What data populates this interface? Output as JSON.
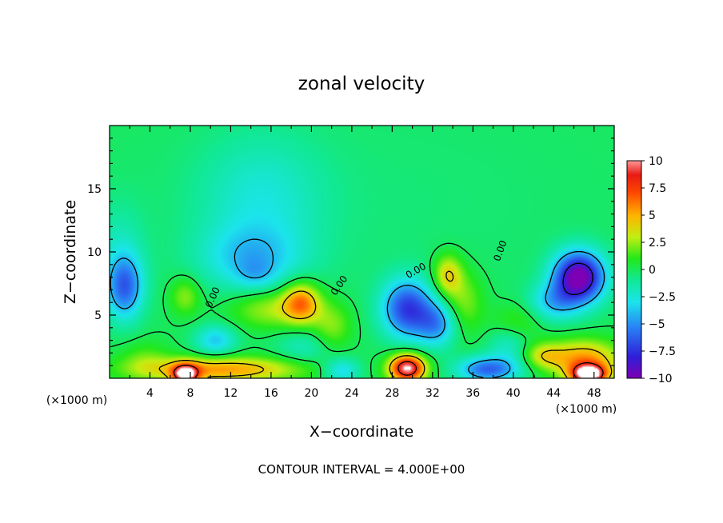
{
  "chart_data": {
    "type": "heatmap",
    "title": "zonal velocity",
    "xlabel": "X−coordinate",
    "ylabel": "Z−coordinate",
    "x_unit_label": "(×1000 m)",
    "x_unit_label_right": "(×1000 m)",
    "footer": "CONTOUR INTERVAL = 4.000E+00",
    "xlim": [
      0,
      50
    ],
    "ylim": [
      0,
      20
    ],
    "x_ticks": [
      {
        "v": 4,
        "label": "4"
      },
      {
        "v": 8,
        "label": "8"
      },
      {
        "v": 12,
        "label": "12"
      },
      {
        "v": 16,
        "label": "16"
      },
      {
        "v": 20,
        "label": "20"
      },
      {
        "v": 24,
        "label": "24"
      },
      {
        "v": 28,
        "label": "28"
      },
      {
        "v": 32,
        "label": "32"
      },
      {
        "v": 36,
        "label": "36"
      },
      {
        "v": 40,
        "label": "40"
      },
      {
        "v": 44,
        "label": "44"
      },
      {
        "v": 48,
        "label": "48"
      }
    ],
    "y_ticks": [
      {
        "v": 5,
        "label": "5"
      },
      {
        "v": 10,
        "label": "10"
      },
      {
        "v": 15,
        "label": "15"
      }
    ],
    "colorbar": {
      "min": -10,
      "max": 10,
      "ticks": [
        {
          "v": 10,
          "label": "10"
        },
        {
          "v": 7.5,
          "label": "7.5"
        },
        {
          "v": 5,
          "label": "5"
        },
        {
          "v": 2.5,
          "label": "2.5"
        },
        {
          "v": 0,
          "label": "0"
        },
        {
          "v": -2.5,
          "label": "−2.5"
        },
        {
          "v": -5,
          "label": "−5"
        },
        {
          "v": -7.5,
          "label": "−7.5"
        },
        {
          "v": -10,
          "label": "−10"
        }
      ],
      "stops": [
        {
          "v": -10,
          "color": "#7d00b4"
        },
        {
          "v": -8,
          "color": "#2f1fd8"
        },
        {
          "v": -5.5,
          "color": "#2a7bf4"
        },
        {
          "v": -3,
          "color": "#1ce4ec"
        },
        {
          "v": -1,
          "color": "#11e896"
        },
        {
          "v": 1,
          "color": "#22e81a"
        },
        {
          "v": 3,
          "color": "#c4ee12"
        },
        {
          "v": 5,
          "color": "#ffb200"
        },
        {
          "v": 7,
          "color": "#ff4a00"
        },
        {
          "v": 8.7,
          "color": "#e81a14"
        },
        {
          "v": 10,
          "color": "#ff9898"
        }
      ]
    },
    "contour_labels": [
      {
        "text": "0.00",
        "x": 10.5,
        "z": 6.3,
        "angle": -65
      },
      {
        "text": "0.00",
        "x": 23,
        "z": 7.2,
        "angle": -55
      },
      {
        "text": "0.00",
        "x": 30.5,
        "z": 8.3,
        "angle": -30
      },
      {
        "text": "0.00",
        "x": 39,
        "z": 10,
        "angle": -70
      }
    ],
    "features": [
      {
        "x": 25,
        "z": 14,
        "v": -0.5,
        "sx": 28,
        "sz": 10
      },
      {
        "x": 15,
        "z": 14,
        "v": -2.2,
        "sx": 6,
        "sz": 5
      },
      {
        "x": 14,
        "z": 9.5,
        "v": -3.0,
        "sx": 5,
        "sz": 2.5
      },
      {
        "x": 14.5,
        "z": 8.2,
        "v": -1.5,
        "sx": 2,
        "sz": 1.2
      },
      {
        "x": 1.5,
        "z": 7.2,
        "v": -5.5,
        "sx": 1.8,
        "sz": 2.5
      },
      {
        "x": 1.0,
        "z": 10,
        "v": -1.5,
        "sx": 2.5,
        "sz": 4
      },
      {
        "x": 7.5,
        "z": 6.5,
        "v": 2.5,
        "sx": 1.5,
        "sz": 1.5
      },
      {
        "x": 10.5,
        "z": 3,
        "v": -3.5,
        "sx": 2,
        "sz": 1.2
      },
      {
        "x": 16,
        "z": 5.5,
        "v": 3.0,
        "sx": 4,
        "sz": 1.6
      },
      {
        "x": 19,
        "z": 6,
        "v": 5.5,
        "sx": 1.8,
        "sz": 1.6
      },
      {
        "x": 22,
        "z": 4,
        "v": 2.5,
        "sx": 2,
        "sz": 2
      },
      {
        "x": 11,
        "z": 0.7,
        "v": 5.5,
        "sx": 8,
        "sz": 1.0
      },
      {
        "x": 7.5,
        "z": 0.3,
        "v": 9.0,
        "sx": 1.3,
        "sz": 0.8
      },
      {
        "x": 3.5,
        "z": 1.5,
        "v": 1.5,
        "sx": 2.5,
        "sz": 1.5
      },
      {
        "x": 19.5,
        "z": 2.5,
        "v": -1.8,
        "sx": 3,
        "sz": 1.5
      },
      {
        "x": 23,
        "z": 0.6,
        "v": -3.5,
        "sx": 1.8,
        "sz": 1
      },
      {
        "x": 29.5,
        "z": 5.5,
        "v": -7.0,
        "sx": 2.5,
        "sz": 2.3
      },
      {
        "x": 32.5,
        "z": 4.3,
        "v": -4.5,
        "sx": 2,
        "sz": 1.8
      },
      {
        "x": 29.5,
        "z": 0.8,
        "v": 10.5,
        "sx": 1.8,
        "sz": 1.1
      },
      {
        "x": 33.5,
        "z": 8.2,
        "v": 4.0,
        "sx": 1.4,
        "sz": 1.6
      },
      {
        "x": 35,
        "z": 6,
        "v": 2.5,
        "sx": 2,
        "sz": 2.5
      },
      {
        "x": 37.5,
        "z": 0.7,
        "v": -6.0,
        "sx": 3,
        "sz": 1
      },
      {
        "x": 39.5,
        "z": 2.5,
        "v": -2.0,
        "sx": 2,
        "sz": 1.5
      },
      {
        "x": 40.5,
        "z": 4.5,
        "v": 1.5,
        "sx": 2.5,
        "sz": 1.5
      },
      {
        "x": 46.5,
        "z": 8,
        "v": -10.5,
        "sx": 2.5,
        "sz": 2.0
      },
      {
        "x": 44,
        "z": 6,
        "v": -3.5,
        "sx": 2.5,
        "sz": 1.5
      },
      {
        "x": 47,
        "z": 1.5,
        "v": 5.5,
        "sx": 3.5,
        "sz": 1.5
      },
      {
        "x": 47.5,
        "z": 0.3,
        "v": 10.5,
        "sx": 1.8,
        "sz": 0.8
      },
      {
        "x": 43,
        "z": 1.8,
        "v": 3.0,
        "sx": 2,
        "sz": 1
      }
    ]
  }
}
